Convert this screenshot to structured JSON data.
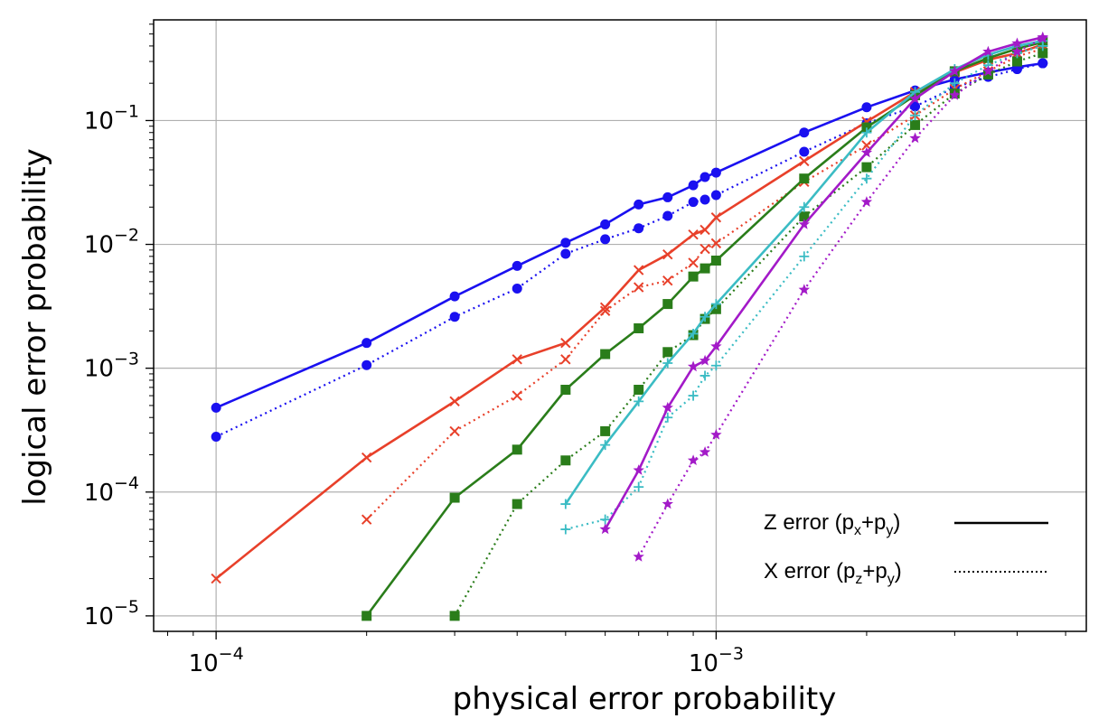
{
  "chart_data": {
    "type": "line",
    "title": "",
    "xlabel": "physical error probability",
    "ylabel": "logical error probability",
    "xscale": "log",
    "yscale": "log",
    "xlim": [
      7.5e-05,
      0.0055
    ],
    "ylim": [
      7.5e-06,
      0.65
    ],
    "grid": true,
    "legend_position": "lower-right",
    "x_ticks": [
      {
        "value": 0.0001,
        "base": "10",
        "exp": "−4"
      },
      {
        "value": 0.001,
        "base": "10",
        "exp": "−3"
      }
    ],
    "y_ticks": [
      {
        "value": 1e-05,
        "base": "10",
        "exp": "−5"
      },
      {
        "value": 0.0001,
        "base": "10",
        "exp": "−4"
      },
      {
        "value": 0.001,
        "base": "10",
        "exp": "−3"
      },
      {
        "value": 0.01,
        "base": "10",
        "exp": "−2"
      },
      {
        "value": 0.1,
        "base": "10",
        "exp": "−1"
      }
    ],
    "legend": [
      {
        "label": "Z error (p",
        "sub1": "x",
        "mid": "+p",
        "sub2": "y",
        "end": ")",
        "line": "solid"
      },
      {
        "label": "X error (p",
        "sub1": "z",
        "mid": "+p",
        "sub2": "y",
        "end": ")",
        "line": "dotted"
      }
    ],
    "series": [
      {
        "color": "#1a10f0",
        "marker": "circle",
        "line": "solid",
        "x": [
          0.0001,
          0.0002,
          0.0003,
          0.0004,
          0.0005,
          0.0006,
          0.0007,
          0.0008,
          0.0009,
          0.00095,
          0.001,
          0.0015,
          0.002,
          0.0025,
          0.003,
          0.0035,
          0.004,
          0.0045
        ],
        "y": [
          0.00048,
          0.0016,
          0.0038,
          0.0067,
          0.0103,
          0.0145,
          0.021,
          0.024,
          0.03,
          0.035,
          0.038,
          0.08,
          0.128,
          0.175,
          0.215,
          0.245,
          0.27,
          0.29
        ]
      },
      {
        "color": "#1a10f0",
        "marker": "circle",
        "line": "dotted",
        "x": [
          0.0001,
          0.0002,
          0.0003,
          0.0004,
          0.0005,
          0.0006,
          0.0007,
          0.0008,
          0.0009,
          0.00095,
          0.001,
          0.0015,
          0.002,
          0.0025,
          0.003,
          0.0035,
          0.004,
          0.0045
        ],
        "y": [
          0.00028,
          0.00106,
          0.0026,
          0.0044,
          0.0084,
          0.011,
          0.0135,
          0.017,
          0.022,
          0.023,
          0.025,
          0.056,
          0.095,
          0.13,
          0.185,
          0.225,
          0.26,
          0.29
        ]
      },
      {
        "color": "#e8402a",
        "marker": "x",
        "line": "solid",
        "x": [
          0.0001,
          0.0002,
          0.0003,
          0.0004,
          0.0005,
          0.0006,
          0.0007,
          0.0008,
          0.0009,
          0.00095,
          0.001,
          0.0015,
          0.002,
          0.0025,
          0.003,
          0.0035,
          0.004,
          0.0045
        ],
        "y": [
          2e-05,
          0.00019,
          0.00054,
          0.00118,
          0.0016,
          0.0031,
          0.0062,
          0.0083,
          0.012,
          0.0131,
          0.0165,
          0.047,
          0.098,
          0.17,
          0.245,
          0.31,
          0.35,
          0.41
        ]
      },
      {
        "color": "#e8402a",
        "marker": "x",
        "line": "dotted",
        "x": [
          0.0002,
          0.0003,
          0.0004,
          0.0005,
          0.0006,
          0.0007,
          0.0008,
          0.0009,
          0.00095,
          0.001,
          0.0015,
          0.002,
          0.0025,
          0.003,
          0.0035,
          0.004,
          0.0045
        ],
        "y": [
          6e-05,
          0.00031,
          0.0006,
          0.00118,
          0.0029,
          0.0045,
          0.0051,
          0.0071,
          0.0092,
          0.0102,
          0.032,
          0.063,
          0.11,
          0.18,
          0.25,
          0.33,
          0.38
        ]
      },
      {
        "color": "#2a7d1a",
        "marker": "square",
        "line": "solid",
        "x": [
          0.0002,
          0.0003,
          0.0004,
          0.0005,
          0.0006,
          0.0007,
          0.0008,
          0.0009,
          0.00095,
          0.001,
          0.0015,
          0.002,
          0.0025,
          0.003,
          0.0035,
          0.004,
          0.0045
        ],
        "y": [
          1e-05,
          9e-05,
          0.00022,
          0.00067,
          0.0013,
          0.0021,
          0.0033,
          0.0055,
          0.0064,
          0.0074,
          0.034,
          0.088,
          0.16,
          0.25,
          0.32,
          0.38,
          0.43
        ]
      },
      {
        "color": "#2a7d1a",
        "marker": "square",
        "line": "dotted",
        "x": [
          0.0003,
          0.0004,
          0.0005,
          0.0006,
          0.0007,
          0.0008,
          0.0009,
          0.00095,
          0.001,
          0.0015,
          0.002,
          0.0025,
          0.003,
          0.0035,
          0.004,
          0.0045
        ],
        "y": [
          1e-05,
          8e-05,
          0.00018,
          0.00031,
          0.00067,
          0.00135,
          0.00185,
          0.0025,
          0.003,
          0.0168,
          0.042,
          0.092,
          0.165,
          0.235,
          0.3,
          0.35
        ]
      },
      {
        "color": "#3bbcc4",
        "marker": "plus",
        "line": "solid",
        "x": [
          0.0005,
          0.0006,
          0.0007,
          0.0008,
          0.0009,
          0.00095,
          0.001,
          0.0015,
          0.002,
          0.0025,
          0.003,
          0.0035,
          0.004,
          0.0045
        ],
        "y": [
          8e-05,
          0.00024,
          0.00054,
          0.0011,
          0.0019,
          0.0026,
          0.0033,
          0.02,
          0.08,
          0.17,
          0.26,
          0.34,
          0.4,
          0.44
        ]
      },
      {
        "color": "#3bbcc4",
        "marker": "plus",
        "line": "dotted",
        "x": [
          0.0005,
          0.0006,
          0.0007,
          0.0008,
          0.0009,
          0.00095,
          0.001,
          0.0015,
          0.002,
          0.0025,
          0.003,
          0.0035,
          0.004,
          0.0045
        ],
        "y": [
          5e-05,
          6e-05,
          0.00011,
          0.0004,
          0.0006,
          0.00087,
          0.00105,
          0.008,
          0.034,
          0.11,
          0.2,
          0.28,
          0.35,
          0.4
        ]
      },
      {
        "color": "#a31ac8",
        "marker": "star",
        "line": "solid",
        "x": [
          0.0006,
          0.0007,
          0.0008,
          0.0009,
          0.00095,
          0.001,
          0.0015,
          0.002,
          0.0025,
          0.003,
          0.0035,
          0.004,
          0.0045
        ],
        "y": [
          5e-05,
          0.00015,
          0.00048,
          0.00103,
          0.00115,
          0.0015,
          0.0145,
          0.055,
          0.15,
          0.25,
          0.36,
          0.42,
          0.47
        ]
      },
      {
        "color": "#a31ac8",
        "marker": "star",
        "line": "dotted",
        "x": [
          0.0007,
          0.0008,
          0.0009,
          0.00095,
          0.001,
          0.0015,
          0.002,
          0.0025,
          0.003,
          0.0035,
          0.004,
          0.0045
        ],
        "y": [
          3e-05,
          8e-05,
          0.00018,
          0.00021,
          0.00029,
          0.0043,
          0.022,
          0.072,
          0.16,
          0.25,
          0.36,
          0.46
        ]
      }
    ]
  }
}
